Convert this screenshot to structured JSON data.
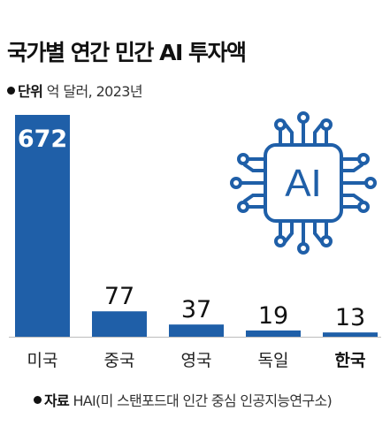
{
  "title": "국가별 연간 민간 AI 투자액",
  "unit": {
    "label": "단위",
    "text": "억 달러, 2023년"
  },
  "source": {
    "label": "자료",
    "text": "HAI(미 스탠포드대 인간 중심 인공지능연구소)"
  },
  "icon": {
    "name": "ai-chip-icon",
    "text": "AI",
    "color": "#1f5fa8"
  },
  "colors": {
    "bar": "#1f5fa8",
    "baseline": "#bdbdbd"
  },
  "chart_data": {
    "type": "bar",
    "categories": [
      "미국",
      "중국",
      "영국",
      "독일",
      "한국"
    ],
    "values": [
      672,
      77,
      37,
      19,
      13
    ],
    "highlight": "한국",
    "ylim": [
      0,
      672
    ],
    "grid": false,
    "title": "국가별 연간 민간 AI 투자액",
    "xlabel": "",
    "ylabel": ""
  }
}
